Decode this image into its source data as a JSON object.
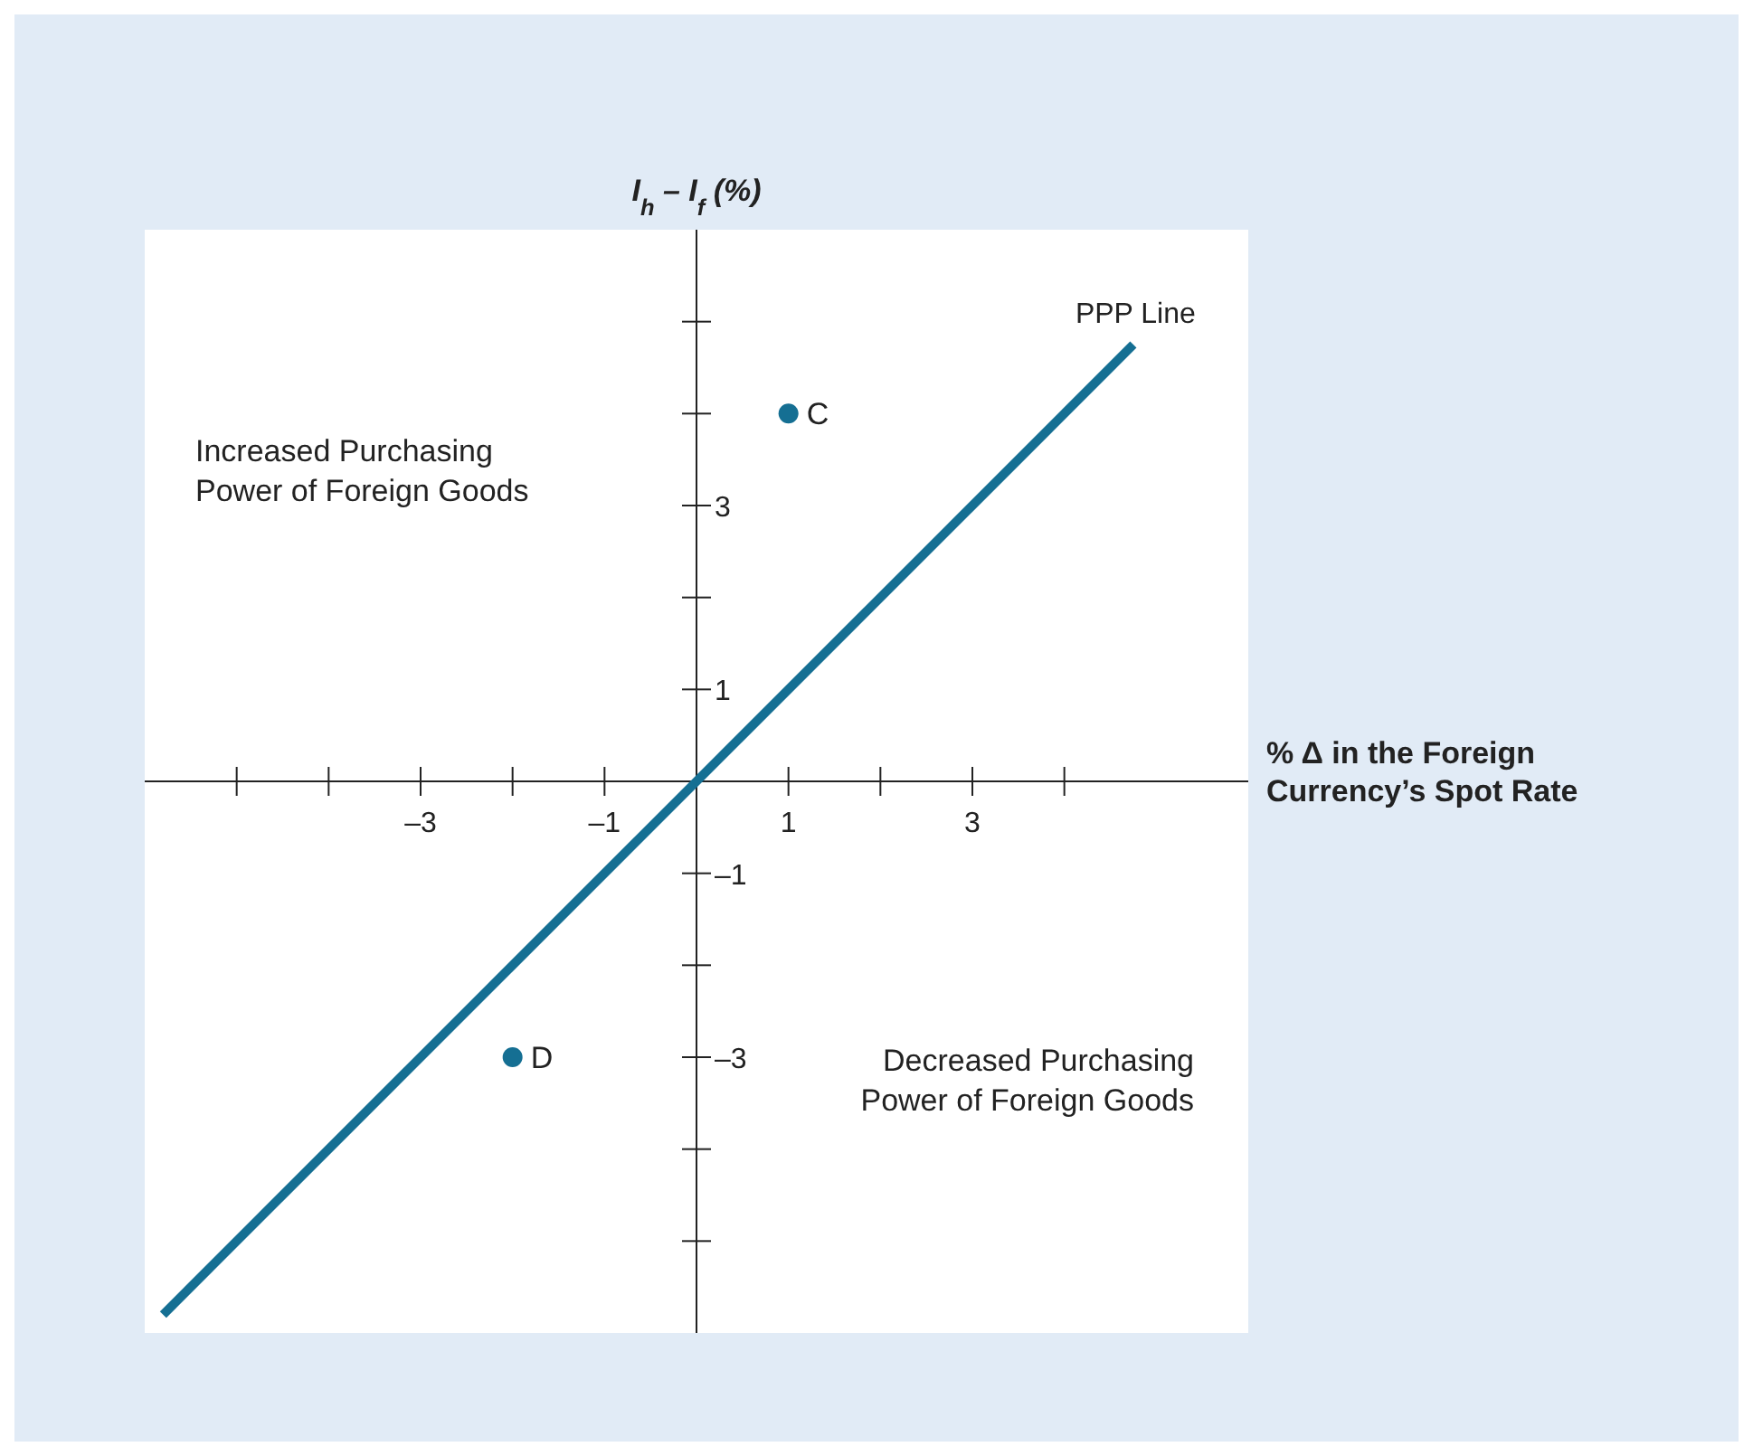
{
  "chart_data": {
    "type": "scatter",
    "xlabel": "% Δ in the Foreign Currency’s Spot Rate",
    "ylabel": "I$_{h}$ – I$_{f}$ (%)",
    "xlim": [
      -6,
      6
    ],
    "ylim": [
      -6,
      6
    ],
    "xticks": [
      {
        "value": -5,
        "label": null
      },
      {
        "value": -4,
        "label": null
      },
      {
        "value": -3,
        "label": "–3"
      },
      {
        "value": -2,
        "label": null
      },
      {
        "value": -1,
        "label": "–1"
      },
      {
        "value": 1,
        "label": "1"
      },
      {
        "value": 2,
        "label": null
      },
      {
        "value": 3,
        "label": "3"
      },
      {
        "value": 4,
        "label": null
      }
    ],
    "yticks": [
      {
        "value": -5,
        "label": null
      },
      {
        "value": -4,
        "label": null
      },
      {
        "value": -3,
        "label": "–3"
      },
      {
        "value": -2,
        "label": null
      },
      {
        "value": -1,
        "label": "–1"
      },
      {
        "value": 1,
        "label": "1"
      },
      {
        "value": 2,
        "label": null
      },
      {
        "value": 3,
        "label": "3"
      },
      {
        "value": 4,
        "label": null
      },
      {
        "value": 5,
        "label": null
      }
    ],
    "series": [
      {
        "name": "PPP Line",
        "type": "line",
        "marker": "none",
        "color": "#156f93",
        "x": [
          -5.8,
          4.75
        ],
        "values": [
          -5.8,
          4.75
        ]
      },
      {
        "color": "#156f93",
        "x": [
          1,
          -2
        ],
        "values": [
          4,
          -3
        ]
      }
    ],
    "annotations": [
      "Increased Purchasing\nPower of Foreign Goods",
      "Decreased Purchasing\nPower of Foreign Goods",
      {
        "text": "C",
        "x": 1,
        "y": 4
      },
      {
        "text": "D",
        "x": -2,
        "y": -3
      }
    ],
    "grid": false,
    "marker": "circle",
    "line_style": "solid"
  }
}
